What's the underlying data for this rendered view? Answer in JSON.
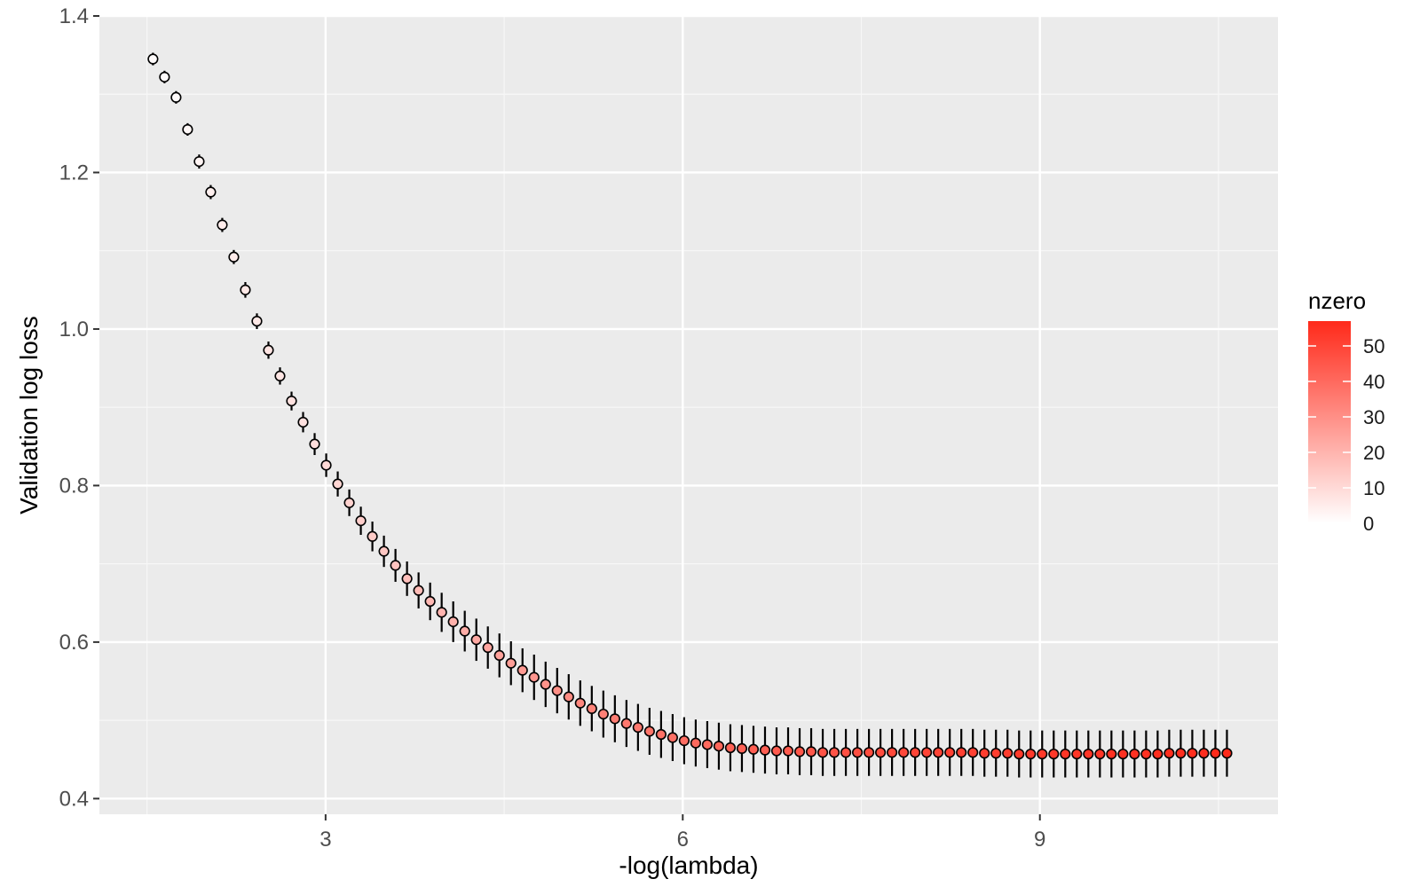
{
  "chart_data": {
    "type": "scatter",
    "xlabel": "-log(lambda)",
    "ylabel": "Validation log loss",
    "xlim": [
      1.1,
      11.0
    ],
    "ylim": [
      0.38,
      1.4
    ],
    "x_ticks": [
      3,
      6,
      9
    ],
    "x_tick_labels": [
      "3",
      "6",
      "9"
    ],
    "y_ticks": [
      0.4,
      0.6,
      0.8,
      1.0,
      1.2,
      1.4
    ],
    "y_tick_labels": [
      "0.4",
      "0.6",
      "0.8",
      "1.0",
      "1.2",
      "1.4"
    ],
    "grid": true,
    "point_fill_low": "#ffffff",
    "point_fill_high": "#ff2a1a",
    "legend": {
      "title": "nzero",
      "placement": "right",
      "range": [
        0,
        57
      ],
      "ticks": [
        0,
        10,
        20,
        30,
        40,
        50
      ],
      "tick_labels": [
        "0",
        "10",
        "20",
        "30",
        "40",
        "50"
      ]
    },
    "x": [
      1.55,
      1.647,
      1.744,
      1.841,
      1.938,
      2.035,
      2.132,
      2.229,
      2.326,
      2.423,
      2.52,
      2.617,
      2.714,
      2.811,
      2.908,
      3.005,
      3.102,
      3.199,
      3.296,
      3.393,
      3.49,
      3.587,
      3.684,
      3.781,
      3.878,
      3.975,
      4.072,
      4.169,
      4.266,
      4.363,
      4.46,
      4.557,
      4.654,
      4.751,
      4.848,
      4.945,
      5.042,
      5.139,
      5.236,
      5.333,
      5.43,
      5.527,
      5.624,
      5.721,
      5.818,
      5.915,
      6.012,
      6.109,
      6.206,
      6.303,
      6.4,
      6.497,
      6.594,
      6.691,
      6.788,
      6.885,
      6.982,
      7.079,
      7.176,
      7.273,
      7.37,
      7.467,
      7.564,
      7.661,
      7.758,
      7.855,
      7.952,
      8.049,
      8.146,
      8.243,
      8.34,
      8.437,
      8.534,
      8.631,
      8.728,
      8.825,
      8.922,
      9.019,
      9.116,
      9.213,
      9.31,
      9.407,
      9.504,
      9.601,
      9.698,
      9.795,
      9.892,
      9.989,
      10.086,
      10.183,
      10.28,
      10.377,
      10.474,
      10.571
    ],
    "y": [
      1.345,
      1.322,
      1.296,
      1.255,
      1.214,
      1.175,
      1.133,
      1.092,
      1.05,
      1.01,
      0.973,
      0.94,
      0.908,
      0.881,
      0.853,
      0.826,
      0.802,
      0.778,
      0.755,
      0.735,
      0.716,
      0.698,
      0.681,
      0.666,
      0.652,
      0.638,
      0.626,
      0.614,
      0.603,
      0.593,
      0.583,
      0.573,
      0.564,
      0.555,
      0.546,
      0.538,
      0.53,
      0.522,
      0.515,
      0.508,
      0.502,
      0.496,
      0.491,
      0.486,
      0.482,
      0.478,
      0.474,
      0.471,
      0.469,
      0.467,
      0.465,
      0.464,
      0.463,
      0.462,
      0.461,
      0.461,
      0.46,
      0.46,
      0.459,
      0.459,
      0.459,
      0.459,
      0.459,
      0.459,
      0.459,
      0.459,
      0.459,
      0.459,
      0.459,
      0.459,
      0.459,
      0.459,
      0.458,
      0.458,
      0.458,
      0.457,
      0.457,
      0.457,
      0.457,
      0.457,
      0.457,
      0.457,
      0.457,
      0.457,
      0.457,
      0.457,
      0.457,
      0.457,
      0.458,
      0.458,
      0.458,
      0.458,
      0.458,
      0.458
    ],
    "error": [
      0.008,
      0.008,
      0.008,
      0.008,
      0.009,
      0.009,
      0.009,
      0.009,
      0.01,
      0.01,
      0.011,
      0.011,
      0.012,
      0.013,
      0.014,
      0.015,
      0.016,
      0.017,
      0.018,
      0.019,
      0.02,
      0.021,
      0.022,
      0.023,
      0.024,
      0.025,
      0.026,
      0.026,
      0.027,
      0.027,
      0.028,
      0.028,
      0.028,
      0.029,
      0.029,
      0.029,
      0.029,
      0.029,
      0.029,
      0.03,
      0.03,
      0.03,
      0.03,
      0.03,
      0.03,
      0.03,
      0.03,
      0.03,
      0.03,
      0.03,
      0.03,
      0.03,
      0.03,
      0.03,
      0.03,
      0.03,
      0.03,
      0.03,
      0.03,
      0.03,
      0.03,
      0.03,
      0.03,
      0.03,
      0.03,
      0.03,
      0.03,
      0.03,
      0.03,
      0.03,
      0.03,
      0.03,
      0.03,
      0.03,
      0.03,
      0.03,
      0.03,
      0.03,
      0.03,
      0.03,
      0.03,
      0.03,
      0.03,
      0.03,
      0.03,
      0.03,
      0.03,
      0.03,
      0.03,
      0.03,
      0.03,
      0.03,
      0.03,
      0.03
    ],
    "nzero": [
      1,
      1,
      1,
      2,
      3,
      4,
      5,
      5,
      6,
      6,
      7,
      7,
      8,
      8,
      9,
      10,
      11,
      12,
      13,
      14,
      15,
      16,
      17,
      18,
      19,
      20,
      21,
      22,
      23,
      24,
      25,
      26,
      27,
      28,
      29,
      30,
      31,
      32,
      33,
      34,
      35,
      36,
      36,
      37,
      38,
      38,
      39,
      40,
      40,
      41,
      42,
      42,
      43,
      43,
      44,
      44,
      45,
      45,
      46,
      46,
      47,
      47,
      48,
      48,
      49,
      49,
      50,
      50,
      50,
      51,
      51,
      51,
      52,
      52,
      52,
      53,
      53,
      53,
      53,
      54,
      54,
      54,
      54,
      55,
      55,
      55,
      55,
      56,
      56,
      56,
      56,
      56,
      57,
      57
    ]
  }
}
